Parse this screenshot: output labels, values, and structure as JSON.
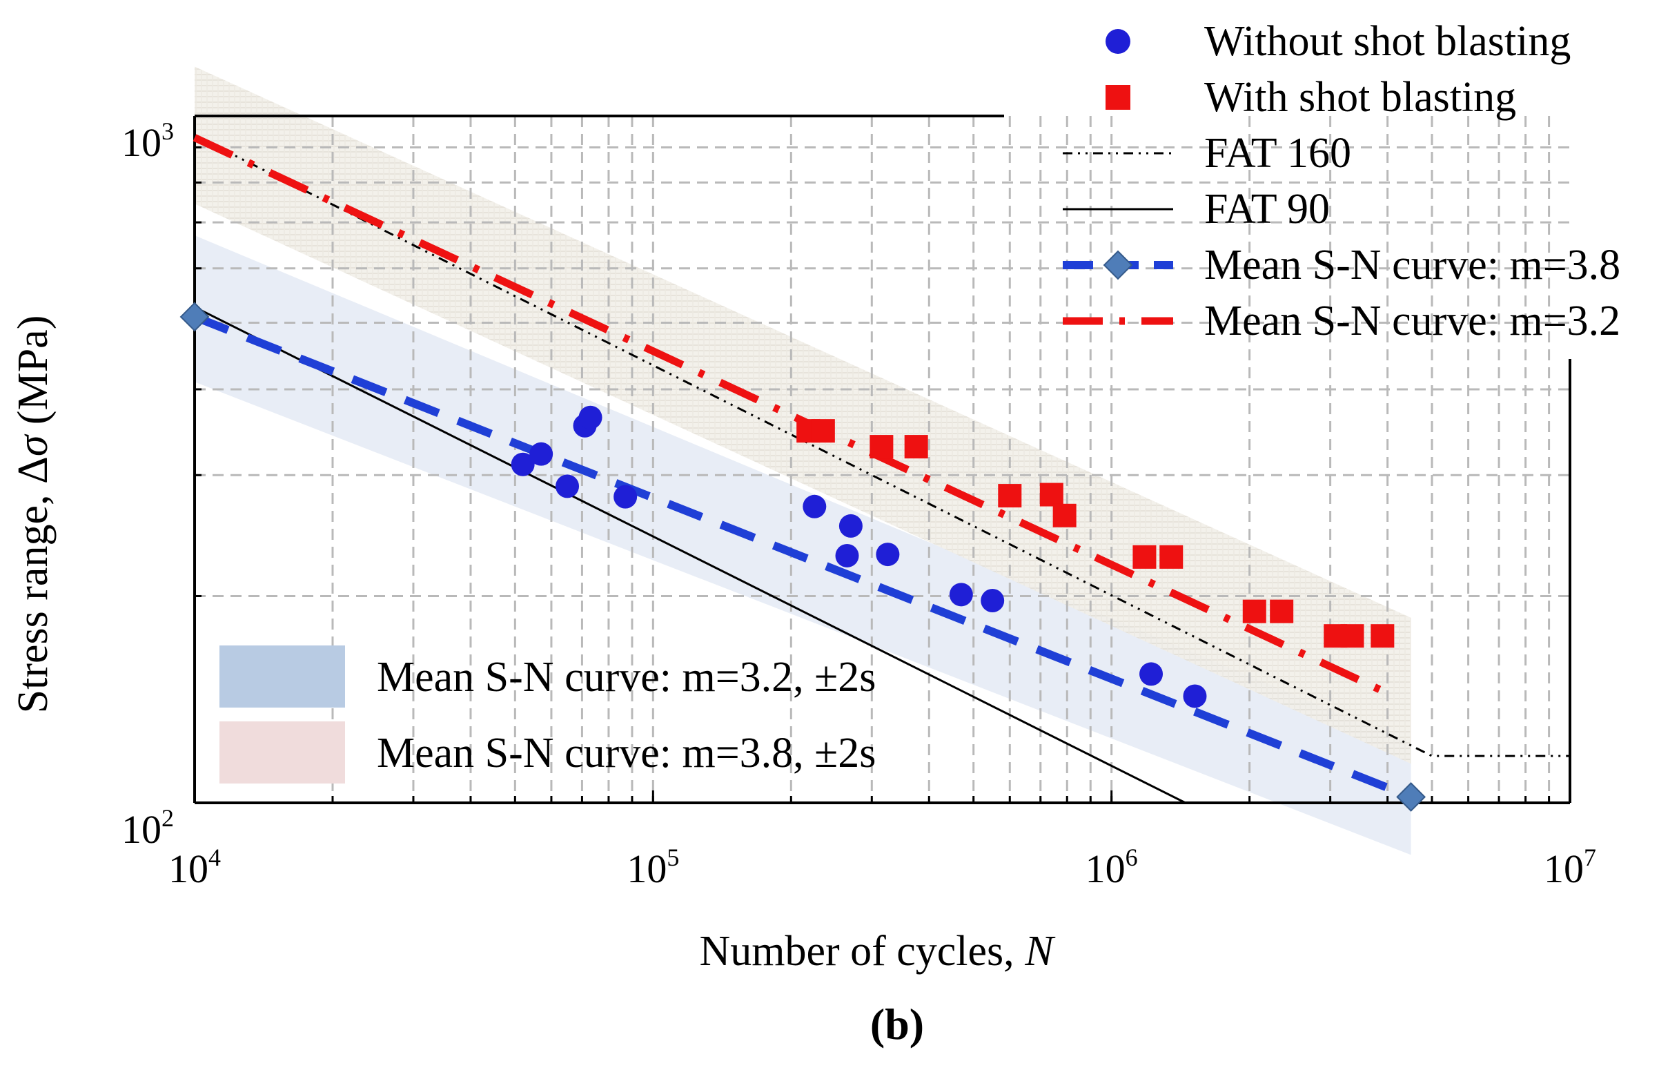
{
  "chart_data": {
    "type": "scatter",
    "panel_label": "(b)",
    "xlabel": {
      "text": "Number of cycles, ",
      "italic": "N"
    },
    "ylabel": {
      "text": "Stress range, Δ",
      "italic": "σ",
      "suffix": " (MPa)"
    },
    "x_scale": "log",
    "y_scale": "log",
    "xlim": [
      10000,
      10000000
    ],
    "ylim": [
      100,
      1000
    ],
    "x_ticks": [
      {
        "value": 10000,
        "base": "10",
        "exp": "4"
      },
      {
        "value": 100000,
        "base": "10",
        "exp": "5"
      },
      {
        "value": 1000000,
        "base": "10",
        "exp": "6"
      },
      {
        "value": 10000000,
        "base": "10",
        "exp": "7"
      }
    ],
    "y_ticks": [
      {
        "value": 100,
        "base": "10",
        "exp": "2"
      },
      {
        "value": 1000,
        "base": "10",
        "exp": "3"
      }
    ],
    "grid": true,
    "legend_top": [
      {
        "label": "Without shot blasting",
        "marker": "circle",
        "color": "#1f1fd6"
      },
      {
        "label": "With shot blasting",
        "marker": "square",
        "color": "#ee1111"
      },
      {
        "label": "FAT 160",
        "style": "dash-dot-dot",
        "color": "#000000"
      },
      {
        "label": "FAT 90",
        "style": "solid",
        "color": "#000000"
      },
      {
        "label": "Mean S-N curve: m=3.8",
        "style": "dashed-diamond",
        "color": "#1f3fd6"
      },
      {
        "label": "Mean S-N curve: m=3.2",
        "style": "dash-dot",
        "color": "#ee1111"
      }
    ],
    "legend_bottom": [
      {
        "label": "Mean S-N curve: m=3.2, ±2s",
        "color": "#b8cbe3"
      },
      {
        "label": "Mean S-N curve: m=3.8, ±2s",
        "color": "#f0dcdc"
      }
    ],
    "series": [
      {
        "name": "Without shot blasting",
        "marker": "circle",
        "color": "#1f1fd6",
        "points": [
          [
            52000,
            311
          ],
          [
            57000,
            322
          ],
          [
            65000,
            289
          ],
          [
            71000,
            354
          ],
          [
            73000,
            364
          ],
          [
            87000,
            279
          ],
          [
            225000,
            270
          ],
          [
            270000,
            253
          ],
          [
            265000,
            229
          ],
          [
            325000,
            230
          ],
          [
            470000,
            201
          ],
          [
            550000,
            197
          ],
          [
            1220000,
            154
          ],
          [
            1520000,
            143
          ]
        ]
      },
      {
        "name": "With shot blasting",
        "marker": "square",
        "color": "#ee1111",
        "points": [
          [
            218000,
            348
          ],
          [
            235000,
            348
          ],
          [
            315000,
            330
          ],
          [
            375000,
            330
          ],
          [
            600000,
            280
          ],
          [
            740000,
            281
          ],
          [
            790000,
            262
          ],
          [
            1180000,
            228
          ],
          [
            1350000,
            228
          ],
          [
            2050000,
            190
          ],
          [
            2350000,
            190
          ],
          [
            3080000,
            175
          ],
          [
            3350000,
            175
          ],
          [
            3900000,
            175
          ]
        ]
      },
      {
        "name": "FAT 160",
        "style": "dash-dot-dot",
        "color": "#000000",
        "points": [
          [
            10000,
            937
          ],
          [
            5000000,
            117
          ],
          [
            10000000,
            117
          ]
        ]
      },
      {
        "name": "FAT 90",
        "style": "solid",
        "color": "#000000",
        "points": [
          [
            10000,
            527
          ],
          [
            1450000,
            100
          ]
        ]
      },
      {
        "name": "Mean S-N curve: m=3.8",
        "style": "dashed-diamond",
        "color": "#1f3fd6",
        "points": [
          [
            10000,
            510
          ],
          [
            4500000,
            102
          ]
        ]
      },
      {
        "name": "Mean S-N curve: m=3.2",
        "style": "dash-dot",
        "color": "#ee1111",
        "points": [
          [
            10000,
            930
          ],
          [
            3950000,
            145
          ]
        ]
      }
    ],
    "bands": [
      {
        "name": "Mean S-N curve: m=3.2, ±2s",
        "color": "#e6ebf5",
        "lower": [
          [
            10000,
            410
          ],
          [
            4500000,
            84
          ]
        ],
        "upper": [
          [
            10000,
            670
          ],
          [
            4500000,
            122
          ]
        ]
      },
      {
        "name": "Mean S-N curve: m=3.8, ±2s",
        "color": "#f3f0ea",
        "lower": [
          [
            10000,
            745
          ],
          [
            4500000,
            114
          ]
        ],
        "upper": [
          [
            10000,
            1180
          ],
          [
            4500000,
            186
          ]
        ]
      }
    ]
  }
}
